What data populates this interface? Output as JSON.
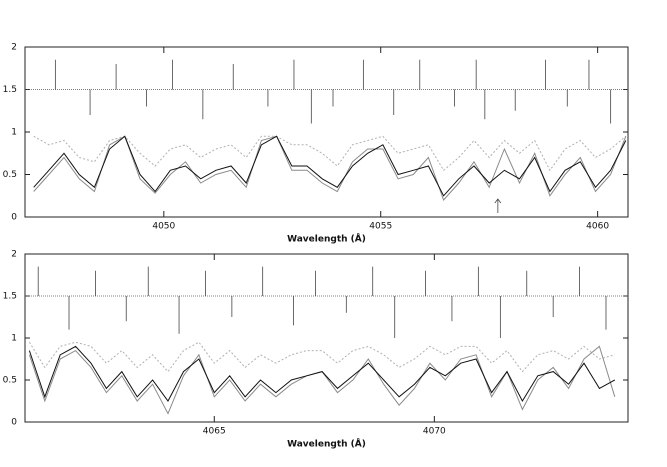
{
  "chart_data": [
    {
      "type": "line",
      "xlabel": "Wavelength (Å)",
      "xlim": [
        4046.8,
        4060.7
      ],
      "ylim": [
        0,
        2
      ],
      "xticks": [
        4050,
        4055,
        4060
      ],
      "yticks": [
        0,
        0.5,
        1,
        1.5,
        2
      ],
      "x": [
        4047.0,
        4047.35,
        4047.7,
        4048.05,
        4048.4,
        4048.75,
        4049.1,
        4049.45,
        4049.8,
        4050.15,
        4050.5,
        4050.85,
        4051.2,
        4051.55,
        4051.9,
        4052.25,
        4052.6,
        4052.95,
        4053.3,
        4053.65,
        4054.0,
        4054.35,
        4054.7,
        4055.05,
        4055.4,
        4055.75,
        4056.1,
        4056.45,
        4056.8,
        4057.15,
        4057.5,
        4057.85,
        4058.2,
        4058.55,
        4058.9,
        4059.25,
        4059.6,
        4059.95,
        4060.3,
        4060.65
      ],
      "series": [
        {
          "color": "#b0b0b0",
          "dash": "2,2",
          "values": [
            0.95,
            0.85,
            0.9,
            0.7,
            0.65,
            0.9,
            0.95,
            0.75,
            0.6,
            0.8,
            0.85,
            0.7,
            0.8,
            0.85,
            0.7,
            0.95,
            0.95,
            0.85,
            0.85,
            0.75,
            0.6,
            0.85,
            0.9,
            0.95,
            0.75,
            0.8,
            0.85,
            0.55,
            0.7,
            0.9,
            0.7,
            0.9,
            0.75,
            0.9,
            0.55,
            0.8,
            0.9,
            0.7,
            0.8,
            0.95
          ]
        },
        {
          "color": "#8a8a8a",
          "values": [
            0.3,
            0.5,
            0.7,
            0.45,
            0.3,
            0.85,
            0.95,
            0.45,
            0.28,
            0.5,
            0.65,
            0.4,
            0.5,
            0.55,
            0.35,
            0.9,
            0.95,
            0.55,
            0.55,
            0.4,
            0.3,
            0.65,
            0.8,
            0.8,
            0.45,
            0.5,
            0.7,
            0.2,
            0.4,
            0.65,
            0.35,
            0.8,
            0.4,
            0.75,
            0.25,
            0.5,
            0.7,
            0.3,
            0.5,
            0.95
          ]
        },
        {
          "color": "#111111",
          "values": [
            0.35,
            0.55,
            0.75,
            0.5,
            0.35,
            0.8,
            0.95,
            0.5,
            0.3,
            0.55,
            0.6,
            0.45,
            0.55,
            0.6,
            0.4,
            0.85,
            0.95,
            0.6,
            0.6,
            0.45,
            0.35,
            0.6,
            0.75,
            0.85,
            0.5,
            0.55,
            0.6,
            0.25,
            0.45,
            0.6,
            0.4,
            0.55,
            0.45,
            0.7,
            0.3,
            0.55,
            0.65,
            0.35,
            0.55,
            0.9
          ]
        }
      ],
      "line_list": {
        "baseline": 1.5,
        "x": [
          4047.5,
          4048.3,
          4048.9,
          4049.6,
          4050.2,
          4050.9,
          4051.6,
          4052.4,
          4053.0,
          4053.4,
          4053.9,
          4054.6,
          4055.3,
          4055.9,
          4056.7,
          4057.2,
          4057.4,
          4058.1,
          4058.8,
          4059.3,
          4059.8,
          4060.3
        ],
        "values": [
          1.85,
          1.2,
          1.8,
          1.3,
          1.85,
          1.15,
          1.8,
          1.3,
          1.85,
          1.1,
          1.3,
          1.85,
          1.2,
          1.85,
          1.3,
          1.85,
          1.15,
          1.25,
          1.85,
          1.3,
          1.85,
          1.1
        ]
      },
      "arrow_x": 4057.7
    },
    {
      "type": "line",
      "xlabel": "Wavelength (Å)",
      "xlim": [
        4060.7,
        4074.4
      ],
      "ylim": [
        0,
        2
      ],
      "xticks": [
        4065,
        4070
      ],
      "yticks": [
        0,
        0.5,
        1,
        1.5,
        2
      ],
      "x": [
        4060.8,
        4061.15,
        4061.5,
        4061.85,
        4062.2,
        4062.55,
        4062.9,
        4063.25,
        4063.6,
        4063.95,
        4064.3,
        4064.65,
        4065.0,
        4065.35,
        4065.7,
        4066.05,
        4066.4,
        4066.75,
        4067.1,
        4067.45,
        4067.8,
        4068.15,
        4068.5,
        4068.85,
        4069.2,
        4069.55,
        4069.9,
        4070.25,
        4070.6,
        4070.95,
        4071.3,
        4071.65,
        4072.0,
        4072.35,
        4072.7,
        4073.05,
        4073.4,
        4073.75,
        4074.1
      ],
      "series": [
        {
          "color": "#b0b0b0",
          "dash": "2,2",
          "values": [
            0.95,
            0.65,
            0.9,
            0.95,
            0.9,
            0.7,
            0.85,
            0.65,
            0.8,
            0.6,
            0.85,
            0.95,
            0.7,
            0.85,
            0.65,
            0.8,
            0.7,
            0.8,
            0.85,
            0.85,
            0.7,
            0.85,
            0.9,
            0.8,
            0.65,
            0.75,
            0.9,
            0.8,
            0.9,
            0.9,
            0.7,
            0.85,
            0.6,
            0.8,
            0.85,
            0.75,
            0.9,
            0.75,
            0.8
          ]
        },
        {
          "color": "#8a8a8a",
          "values": [
            0.8,
            0.25,
            0.75,
            0.85,
            0.65,
            0.35,
            0.55,
            0.25,
            0.45,
            0.1,
            0.55,
            0.8,
            0.3,
            0.5,
            0.25,
            0.45,
            0.3,
            0.45,
            0.55,
            0.6,
            0.35,
            0.5,
            0.75,
            0.45,
            0.2,
            0.4,
            0.7,
            0.5,
            0.75,
            0.8,
            0.3,
            0.6,
            0.15,
            0.5,
            0.65,
            0.4,
            0.75,
            0.9,
            0.3
          ]
        },
        {
          "color": "#111111",
          "values": [
            0.85,
            0.3,
            0.8,
            0.9,
            0.7,
            0.4,
            0.6,
            0.3,
            0.5,
            0.25,
            0.6,
            0.75,
            0.35,
            0.55,
            0.3,
            0.5,
            0.35,
            0.5,
            0.55,
            0.6,
            0.4,
            0.55,
            0.7,
            0.5,
            0.3,
            0.45,
            0.65,
            0.55,
            0.7,
            0.75,
            0.35,
            0.6,
            0.25,
            0.55,
            0.6,
            0.45,
            0.7,
            0.4,
            0.5
          ]
        }
      ],
      "line_list": {
        "baseline": 1.5,
        "x": [
          4061.0,
          4061.7,
          4062.3,
          4063.0,
          4063.5,
          4064.2,
          4064.8,
          4065.4,
          4066.1,
          4066.8,
          4067.3,
          4068.0,
          4068.6,
          4069.1,
          4069.8,
          4070.4,
          4071.0,
          4071.5,
          4072.1,
          4072.7,
          4073.3,
          4073.9
        ],
        "values": [
          1.85,
          1.1,
          1.8,
          1.2,
          1.85,
          1.05,
          1.8,
          1.25,
          1.85,
          1.15,
          1.8,
          1.3,
          1.85,
          1.0,
          1.8,
          1.2,
          1.85,
          1.0,
          1.8,
          1.25,
          1.85,
          1.1
        ]
      }
    }
  ]
}
